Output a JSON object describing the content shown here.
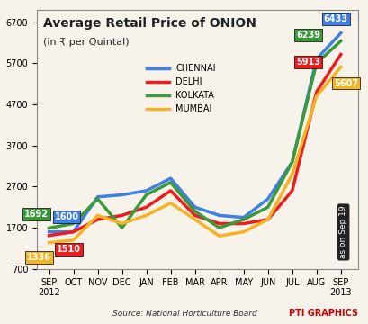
{
  "chart_data": {
    "type": "line",
    "title": "Average Retail Price of ONION",
    "subtitle": "(in ₹ per Quintal)",
    "source": "Source: National Horticulture Board",
    "credit": "PTI GRAPHICS",
    "note": "as on Sep 19",
    "categories": [
      "SEP\n2012",
      "OCT",
      "NOV",
      "DEC",
      "JAN",
      "FEB",
      "MAR",
      "APR",
      "MAY",
      "JUN",
      "JUL",
      "AUG",
      "SEP\n2013"
    ],
    "series": [
      {
        "name": "CHENNAI",
        "color": "#3f7fe6",
        "values": [
          1600,
          1600,
          2450,
          2500,
          2600,
          2900,
          2200,
          2000,
          1950,
          2400,
          3300,
          5800,
          6433
        ]
      },
      {
        "name": "DELHI",
        "color": "#ee1c1c",
        "values": [
          1510,
          1600,
          1900,
          2000,
          2200,
          2600,
          2000,
          1800,
          1800,
          1900,
          2600,
          5000,
          5913
        ]
      },
      {
        "name": "KOLKATA",
        "color": "#3a9a3a",
        "values": [
          1692,
          1800,
          2400,
          1700,
          2500,
          2800,
          2100,
          1700,
          1900,
          2200,
          3300,
          5700,
          6239
        ]
      },
      {
        "name": "MUMBAI",
        "color": "#f5b324",
        "values": [
          1336,
          1400,
          2000,
          1800,
          2000,
          2300,
          1900,
          1500,
          1600,
          1900,
          3000,
          4900,
          5607
        ]
      }
    ],
    "annotations": [
      {
        "series": "KOLKATA",
        "index": 0
      },
      {
        "series": "CHENNAI",
        "index": 0
      },
      {
        "series": "MUMBAI",
        "index": 0
      },
      {
        "series": "DELHI",
        "index": 0
      },
      {
        "series": "CHENNAI",
        "index": 12
      },
      {
        "series": "KOLKATA",
        "index": 12
      },
      {
        "series": "DELHI",
        "index": 12
      },
      {
        "series": "MUMBAI",
        "index": 12
      }
    ],
    "ylim": [
      700,
      7000
    ],
    "yticks": [
      700,
      1700,
      2700,
      3700,
      4700,
      5700,
      6700
    ],
    "grid": false,
    "legend": "upper center"
  }
}
